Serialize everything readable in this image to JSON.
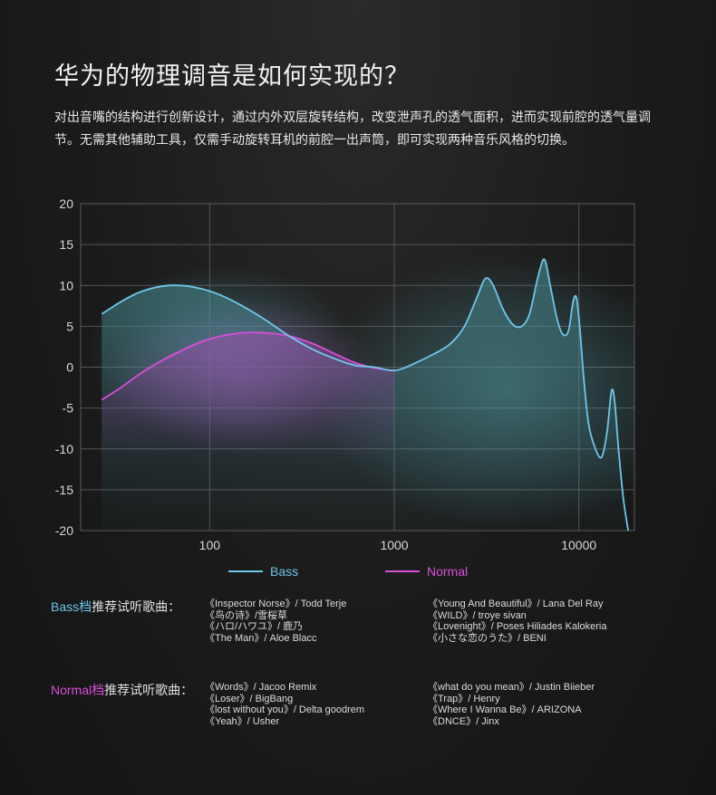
{
  "header": {
    "title": "华为的物理调音是如何实现的？",
    "description": "对出音嘴的结构进行创新设计，通过内外双层旋转结构，改变泄声孔的透气面积，进而实现前腔的透气量调节。无需其他辅助工具，仅需手动旋转耳机的前腔一出声筒，即可实现两种音乐风格的切换。"
  },
  "chart_data": {
    "type": "line",
    "x_scale": "log",
    "xlim": [
      20,
      20000
    ],
    "ylim": [
      -20,
      20
    ],
    "x_ticks": [
      "100",
      "1000",
      "10000"
    ],
    "y_ticks": [
      "20",
      "15",
      "10",
      "5",
      "0",
      "-5",
      "-10",
      "-15",
      "-20"
    ],
    "grid": true,
    "legend_position": "bottom-center",
    "colors": {
      "Bass": "#6fc6ea",
      "Normal": "#d94fd8"
    },
    "series": [
      {
        "name": "Bass",
        "points": [
          [
            26,
            6.5
          ],
          [
            33,
            8.0
          ],
          [
            42,
            9.2
          ],
          [
            55,
            9.9
          ],
          [
            70,
            10.0
          ],
          [
            90,
            9.6
          ],
          [
            115,
            8.8
          ],
          [
            150,
            7.5
          ],
          [
            200,
            5.8
          ],
          [
            270,
            3.8
          ],
          [
            360,
            2.2
          ],
          [
            480,
            1.0
          ],
          [
            620,
            0.2
          ],
          [
            780,
            0.0
          ],
          [
            900,
            -0.3
          ],
          [
            1000,
            -0.4
          ],
          [
            1100,
            -0.2
          ],
          [
            1300,
            0.5
          ],
          [
            1600,
            1.5
          ],
          [
            2000,
            2.8
          ],
          [
            2400,
            5.0
          ],
          [
            2800,
            8.5
          ],
          [
            3100,
            10.8
          ],
          [
            3400,
            10.2
          ],
          [
            3900,
            7.0
          ],
          [
            4400,
            5.2
          ],
          [
            4900,
            5.0
          ],
          [
            5400,
            6.5
          ],
          [
            6000,
            11.0
          ],
          [
            6500,
            13.2
          ],
          [
            7000,
            10.0
          ],
          [
            7600,
            6.0
          ],
          [
            8200,
            4.0
          ],
          [
            8800,
            4.5
          ],
          [
            9300,
            8.0
          ],
          [
            9700,
            8.5
          ],
          [
            10100,
            5.0
          ],
          [
            10600,
            -1.0
          ],
          [
            11300,
            -7.0
          ],
          [
            12300,
            -10.0
          ],
          [
            13300,
            -11.0
          ],
          [
            14200,
            -8.0
          ],
          [
            15000,
            -3.0
          ],
          [
            15600,
            -4.0
          ],
          [
            16400,
            -10.0
          ],
          [
            17400,
            -16.0
          ],
          [
            18500,
            -20.0
          ]
        ]
      },
      {
        "name": "Normal",
        "points": [
          [
            26,
            -4.0
          ],
          [
            33,
            -2.5
          ],
          [
            42,
            -0.8
          ],
          [
            55,
            0.8
          ],
          [
            70,
            2.0
          ],
          [
            90,
            3.1
          ],
          [
            115,
            3.8
          ],
          [
            150,
            4.2
          ],
          [
            200,
            4.2
          ],
          [
            270,
            3.8
          ],
          [
            360,
            2.9
          ],
          [
            480,
            1.6
          ],
          [
            620,
            0.5
          ],
          [
            780,
            -0.1
          ],
          [
            900,
            -0.3
          ],
          [
            1000,
            -0.4
          ]
        ]
      }
    ]
  },
  "recommendations": {
    "bass": {
      "label_accent": "Bass档",
      "label_rest": "推荐试听歌曲：",
      "col1": [
        "《Inspector Norse》/ Todd Terje",
        "《鸟の诗》/雪桜草",
        "《ハロ/ハワユ》/ 鹿乃",
        "《The Man》/ Aloe Blacc"
      ],
      "col2": [
        "《Young And Beautiful》/ Lana Del Ray",
        "《WILD》/ troye sivan",
        "《Lovenight》/ Poses Hiliades Kalokeria",
        "《小さな恋のうた》/ BENI"
      ]
    },
    "normal": {
      "label_accent": "Normal档",
      "label_rest": "推荐试听歌曲：",
      "col1": [
        "《Words》/ Jacoo Remix",
        "《Loser》/ BigBang",
        "《lost without you》/ Delta goodrem",
        "《Yeah》/ Usher"
      ],
      "col2": [
        "《what do you mean》/ Justin Biieber",
        "《Trap》/ Henry",
        "《Where I Wanna Be》/ ARIZONA",
        "《DNCE》/ Jinx"
      ]
    }
  }
}
